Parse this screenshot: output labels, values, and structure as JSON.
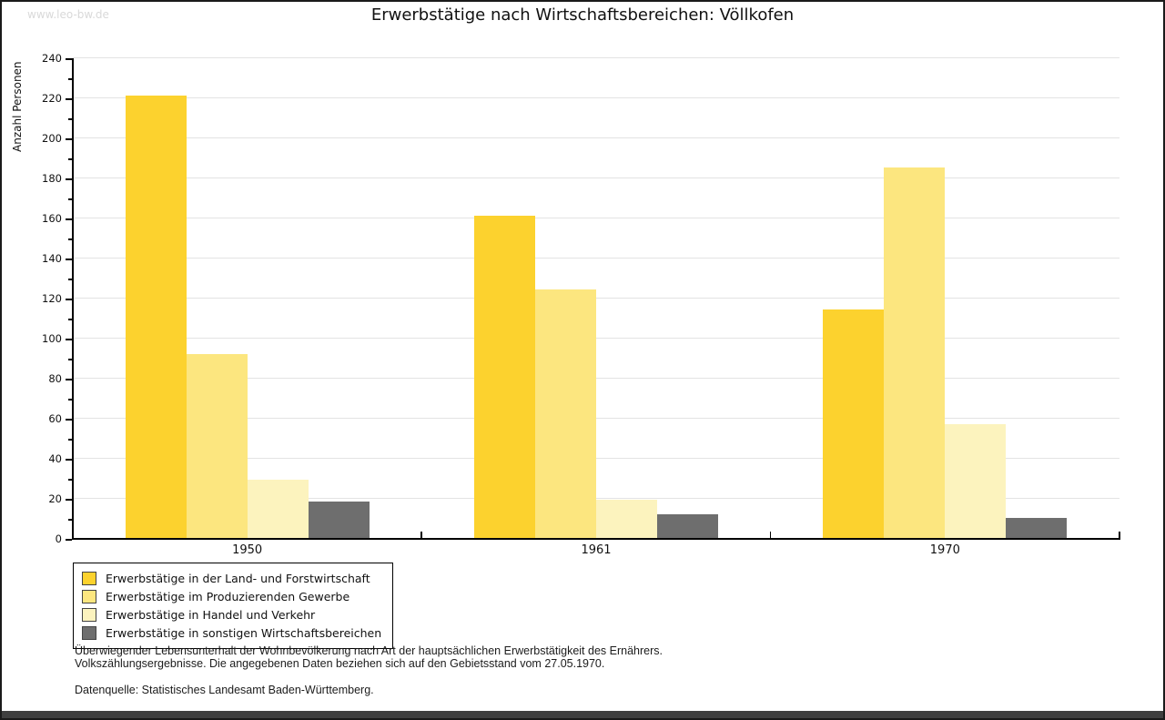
{
  "watermark": "www.leo-bw.de",
  "title": "Erwerbstätige nach Wirtschaftsbereichen: Völlkofen",
  "chart_data": {
    "type": "bar",
    "title": "Erwerbstätige nach Wirtschaftsbereichen: Völlkofen",
    "xlabel": "",
    "ylabel": "Anzahl Personen",
    "ylim": [
      0,
      240
    ],
    "ytick_step": 20,
    "yminor_step": 10,
    "grid": "horizontal",
    "legend_position": "bottom-left",
    "categories": [
      "1950",
      "1961",
      "1970"
    ],
    "series": [
      {
        "name": "Erwerbstätige in der Land- und Forstwirtschaft",
        "color": "#FCD22E",
        "values": [
          221,
          161,
          114
        ]
      },
      {
        "name": "Erwerbstätige im Produzierenden Gewerbe",
        "color": "#FCE67F",
        "values": [
          92,
          124,
          185
        ]
      },
      {
        "name": "Erwerbstätige in Handel und Verkehr",
        "color": "#FCF3BE",
        "values": [
          29,
          19,
          57
        ]
      },
      {
        "name": "Erwerbstätige in sonstigen Wirtschaftsbereichen",
        "color": "#6E6E6E",
        "values": [
          18,
          12,
          10
        ]
      }
    ]
  },
  "footer": {
    "line1": "Überwiegender Lebensunterhalt der Wohnbevölkerung nach Art der hauptsächlichen Erwerbstätigkeit des Ernährers.",
    "line2": "Volkszählungsergebnisse. Die angegebenen Daten beziehen sich auf den Gebietsstand vom 27.05.1970.",
    "source": "Datenquelle: Statistisches Landesamt Baden-Württemberg."
  }
}
